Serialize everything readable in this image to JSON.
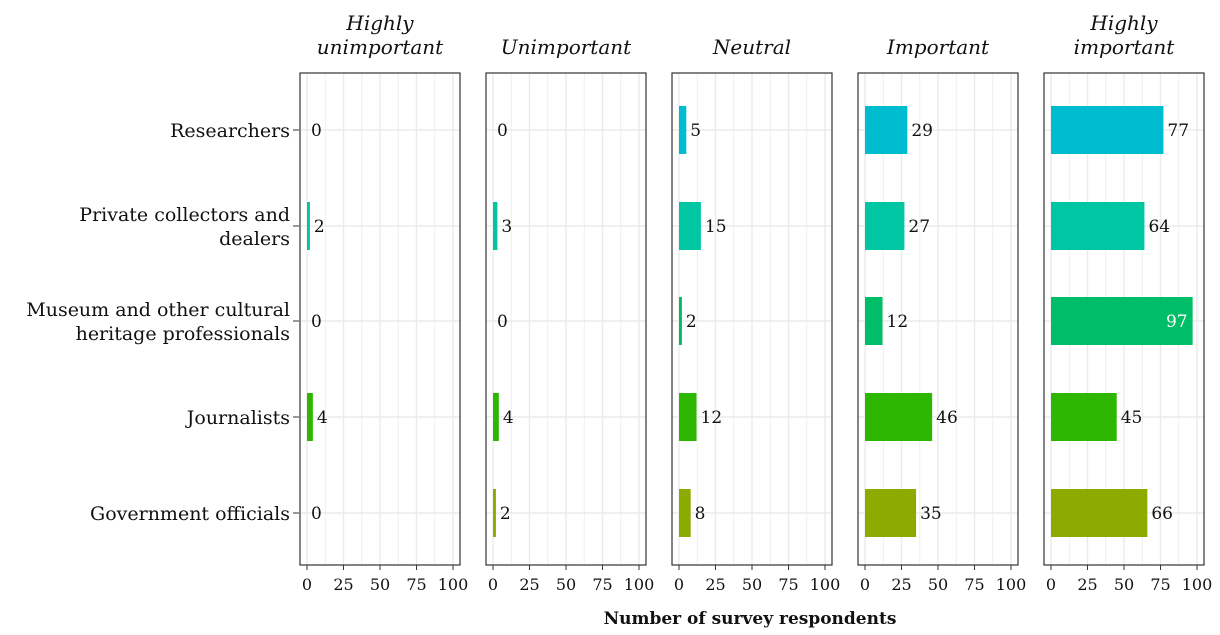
{
  "chart_data": {
    "type": "bar",
    "orientation": "horizontal",
    "xlabel": "Number of survey respondents",
    "xlim": [
      0,
      100
    ],
    "xticks": [
      "0",
      "25",
      "50",
      "75",
      "100"
    ],
    "grid": true,
    "legend": "none",
    "categories": [
      [
        "Researchers"
      ],
      [
        "Private collectors and",
        "dealers"
      ],
      [
        "Museum and other cultural",
        "heritage professionals"
      ],
      [
        "Journalists"
      ],
      [
        "Government officials"
      ]
    ],
    "category_colors": [
      "#00BCD0",
      "#00C6A4",
      "#00BE67",
      "#2DB700",
      "#8CAB00"
    ],
    "facets": [
      {
        "title": [
          "Highly",
          "unimportant"
        ],
        "values": [
          0,
          2,
          0,
          4,
          0
        ]
      },
      {
        "title": [
          "Unimportant"
        ],
        "values": [
          0,
          3,
          0,
          4,
          2
        ]
      },
      {
        "title": [
          "Neutral"
        ],
        "values": [
          5,
          15,
          2,
          12,
          8
        ]
      },
      {
        "title": [
          "Important"
        ],
        "values": [
          29,
          27,
          12,
          46,
          35
        ]
      },
      {
        "title": [
          "Highly",
          "important"
        ],
        "values": [
          77,
          64,
          97,
          45,
          66
        ]
      }
    ]
  }
}
